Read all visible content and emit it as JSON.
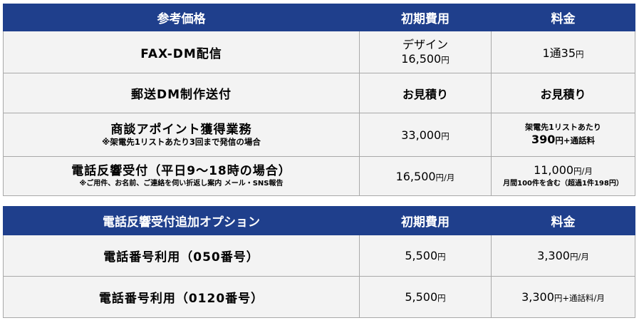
{
  "table1": {
    "header": {
      "item": "参考価格",
      "initial": "初期費用",
      "fee": "料金"
    },
    "rows": [
      {
        "item": "FAX-DM配信",
        "initial_line1": "デザイン",
        "initial_line2": "16,500",
        "initial_unit": "円",
        "fee_value": "1通35",
        "fee_unit": "円"
      },
      {
        "item": "郵送DM制作送付",
        "initial": "お見積り",
        "fee": "お見積り"
      },
      {
        "item": "商談アポイント獲得業務",
        "item_note": "※架電先1リストあたり3回まで発信の場合",
        "initial_value": "33,000",
        "initial_unit": "円",
        "fee_line1": "架電先1リストあたり",
        "fee_value": "390",
        "fee_suffix": "円+通話料"
      },
      {
        "item": "電話反響受付（平日9～18時の場合）",
        "item_note": "※ご用件、お名前、ご連絡を伺い折返し案内 メール・SNS報告",
        "initial_value": "16,500",
        "initial_suffix": "円/月",
        "fee_value": "11,000",
        "fee_suffix": "円/月",
        "fee_note": "月間100件を含む（超過1件198円）"
      }
    ]
  },
  "table2": {
    "header": {
      "item": "電話反響受付追加オプション",
      "initial": "初期費用",
      "fee": "料金"
    },
    "rows": [
      {
        "item": "電話番号利用（050番号）",
        "initial_value": "5,500",
        "initial_unit": "円",
        "fee_value": "3,300",
        "fee_suffix": "円/月"
      },
      {
        "item": "電話番号利用（0120番号）",
        "initial_value": "5,500",
        "initial_unit": "円",
        "fee_value": "3,300",
        "fee_suffix": "円+通話料/月"
      }
    ]
  }
}
